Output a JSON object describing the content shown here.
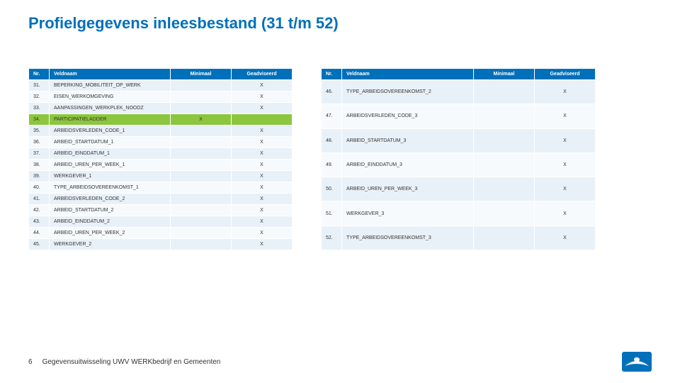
{
  "title": "Profielgegevens inleesbestand (31 t/m 52)",
  "title_color": "#0070ba",
  "header_bg": "#0070ba",
  "header_fg": "#ffffff",
  "row_alt_bg": "#e9f1f8",
  "row_bg": "#f6fafd",
  "highlight_bg": "#8cc63f",
  "text_color": "#333333",
  "columns": {
    "nr": "Nr.",
    "name": "Veldnaam",
    "min": "Minimaal",
    "adv": "Geadviseerd"
  },
  "left_table": [
    {
      "nr": "31.",
      "name": "BEPERKING_MOBILITEIT_OP_WERK",
      "min": "",
      "adv": "X",
      "hl": false
    },
    {
      "nr": "32.",
      "name": "EISEN_WERKOMGEVING",
      "min": "",
      "adv": "X",
      "hl": false
    },
    {
      "nr": "33.",
      "name": "AANPASSINGEN_WERKPLEK_NOODZ",
      "min": "",
      "adv": "X",
      "hl": false
    },
    {
      "nr": "34.",
      "name": "PARTICIPATIELADDER",
      "min": "X",
      "adv": "",
      "hl": true
    },
    {
      "nr": "35.",
      "name": "ARBEIDSVERLEDEN_CODE_1",
      "min": "",
      "adv": "X",
      "hl": false
    },
    {
      "nr": "36.",
      "name": "ARBEID_STARTDATUM_1",
      "min": "",
      "adv": "X",
      "hl": false
    },
    {
      "nr": "37.",
      "name": "ARBEID_EINDDATUM_1",
      "min": "",
      "adv": "X",
      "hl": false
    },
    {
      "nr": "38.",
      "name": "ARBEID_UREN_PER_WEEK_1",
      "min": "",
      "adv": "X",
      "hl": false
    },
    {
      "nr": "39.",
      "name": "WERKGEVER_1",
      "min": "",
      "adv": "X",
      "hl": false
    },
    {
      "nr": "40.",
      "name": "TYPE_ARBEIDSOVEREENKOMST_1",
      "min": "",
      "adv": "X",
      "hl": false
    },
    {
      "nr": "41.",
      "name": "ARBEIDSVERLEDEN_CODE_2",
      "min": "",
      "adv": "X",
      "hl": false
    },
    {
      "nr": "42.",
      "name": "ARBEID_STARTDATUM_2",
      "min": "",
      "adv": "X",
      "hl": false
    },
    {
      "nr": "43.",
      "name": "ARBEID_EINDDATUM_2",
      "min": "",
      "adv": "X",
      "hl": false
    },
    {
      "nr": "44.",
      "name": "ARBEID_UREN_PER_WEEK_2",
      "min": "",
      "adv": "X",
      "hl": false
    },
    {
      "nr": "45.",
      "name": "WERKGEVER_2",
      "min": "",
      "adv": "X",
      "hl": false
    }
  ],
  "right_table": [
    {
      "nr": "46.",
      "name": "TYPE_ARBEIDSOVEREENKOMST_2",
      "min": "",
      "adv": "X",
      "hl": false
    },
    {
      "nr": "47.",
      "name": "ARBEIDSVERLEDEN_CODE_3",
      "min": "",
      "adv": "X",
      "hl": false
    },
    {
      "nr": "48.",
      "name": "ARBEID_STARTDATUM_3",
      "min": "",
      "adv": "X",
      "hl": false
    },
    {
      "nr": "49.",
      "name": "ARBEID_EINDDATUM_3",
      "min": "",
      "adv": "X",
      "hl": false
    },
    {
      "nr": "50.",
      "name": "ARBEID_UREN_PER_WEEK_3",
      "min": "",
      "adv": "X",
      "hl": false
    },
    {
      "nr": "51.",
      "name": "WERKGEVER_3",
      "min": "",
      "adv": "X",
      "hl": false
    },
    {
      "nr": "52.",
      "name": "TYPE_ARBEIDSOVEREENKOMST_3",
      "min": "",
      "adv": "X",
      "hl": false
    }
  ],
  "footer": {
    "page": "6",
    "text": "Gegevensuitwisseling UWV WERKbedrijf en Gemeenten"
  },
  "logo": {
    "bg": "#0070ba",
    "swoosh": "#ffffff"
  }
}
